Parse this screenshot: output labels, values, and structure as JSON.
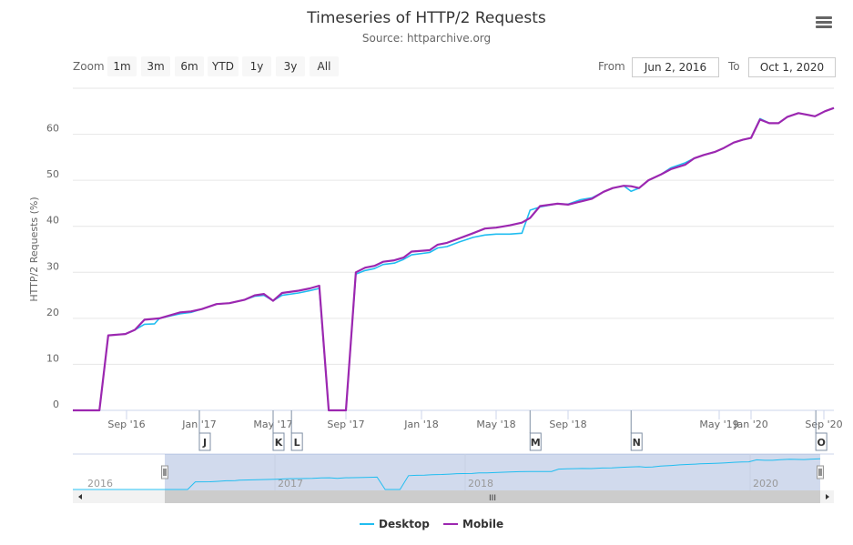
{
  "chart_data": {
    "type": "line",
    "title": "Timeseries of HTTP/2 Requests",
    "subtitle": "Source: httparchive.org",
    "ylabel": "HTTP/2 Requests (%)",
    "xlabel": "",
    "ylim": [
      0,
      70
    ],
    "yticks": [
      0,
      10,
      20,
      30,
      40,
      50,
      60
    ],
    "xticks": [
      {
        "date": "2016-09-01",
        "label": "Sep '16"
      },
      {
        "date": "2017-01-01",
        "label": "Jan '17"
      },
      {
        "date": "2017-05-01",
        "label": "May '17"
      },
      {
        "date": "2017-09-01",
        "label": "Sep '17"
      },
      {
        "date": "2018-01-01",
        "label": "Jan '18"
      },
      {
        "date": "2018-05-01",
        "label": "May '18"
      },
      {
        "date": "2018-09-01",
        "label": "Sep '18"
      },
      {
        "date": "2019-05-01",
        "label": "May '19"
      },
      {
        "date": "2020-01-01",
        "label": "Jan '20"
      },
      {
        "date": "2020-09-01",
        "label": "Sep '20"
      }
    ],
    "grid": true,
    "legend_position": "bottom",
    "series": [
      {
        "name": "Desktop",
        "color": "#20bdf0",
        "points": [
          [
            "2016-06-02",
            0
          ],
          [
            "2016-07-17",
            0
          ],
          [
            "2016-08-01",
            16.3
          ],
          [
            "2016-08-30",
            16.6
          ],
          [
            "2016-09-15",
            17.5
          ],
          [
            "2016-10-01",
            18.7
          ],
          [
            "2016-10-18",
            18.8
          ],
          [
            "2016-10-26",
            20
          ],
          [
            "2016-11-30",
            21
          ],
          [
            "2016-12-18",
            21.3
          ],
          [
            "2017-01-05",
            22
          ],
          [
            "2017-01-29",
            23.1
          ],
          [
            "2017-02-19",
            23.3
          ],
          [
            "2017-03-15",
            24
          ],
          [
            "2017-04-01",
            24.8
          ],
          [
            "2017-04-16",
            25
          ],
          [
            "2017-05-01",
            23.8
          ],
          [
            "2017-05-16",
            25
          ],
          [
            "2017-06-13",
            25.5
          ],
          [
            "2017-07-02",
            26
          ],
          [
            "2017-07-18",
            26.5
          ],
          [
            "2017-08-03",
            0
          ],
          [
            "2017-09-01",
            0
          ],
          [
            "2017-09-17",
            29.6
          ],
          [
            "2017-10-02",
            30.4
          ],
          [
            "2017-10-17",
            30.8
          ],
          [
            "2017-10-31",
            31.7
          ],
          [
            "2017-11-18",
            32
          ],
          [
            "2017-12-03",
            32.8
          ],
          [
            "2017-12-16",
            33.8
          ],
          [
            "2018-01-14",
            34.3
          ],
          [
            "2018-01-27",
            35.3
          ],
          [
            "2018-02-11",
            35.6
          ],
          [
            "2018-03-03",
            36.6
          ],
          [
            "2018-03-25",
            37.6
          ],
          [
            "2018-04-13",
            38.1
          ],
          [
            "2018-05-01",
            38.3
          ],
          [
            "2018-05-24",
            38.3
          ],
          [
            "2018-06-14",
            38.5
          ],
          [
            "2018-06-28",
            43.5
          ],
          [
            "2018-07-15",
            44.2
          ],
          [
            "2018-08-14",
            44.9
          ],
          [
            "2018-09-01",
            44.8
          ],
          [
            "2018-09-22",
            45.8
          ],
          [
            "2018-10-10",
            46.2
          ],
          [
            "2018-10-29",
            47.5
          ],
          [
            "2018-11-13",
            48.3
          ],
          [
            "2018-12-01",
            48.8
          ],
          [
            "2018-12-13",
            47.6
          ],
          [
            "2018-12-26",
            48.3
          ],
          [
            "2019-01-10",
            50
          ],
          [
            "2019-01-30",
            51.3
          ],
          [
            "2019-02-14",
            52.7
          ],
          [
            "2019-03-09",
            53.8
          ],
          [
            "2019-03-23",
            54.8
          ],
          [
            "2019-04-07",
            55.5
          ],
          [
            "2019-04-25",
            56.2
          ],
          [
            "2019-06-05",
            57
          ],
          [
            "2019-08-21",
            58.2
          ],
          [
            "2019-10-30",
            58.8
          ],
          [
            "2020-01-01",
            59.2
          ],
          [
            "2020-01-31",
            63.4
          ],
          [
            "2020-03-02",
            62.4
          ],
          [
            "2020-04-02",
            62.4
          ],
          [
            "2020-05-02",
            63.8
          ],
          [
            "2020-06-08",
            64.6
          ],
          [
            "2020-08-02",
            63.9
          ],
          [
            "2020-09-04",
            65
          ],
          [
            "2020-10-01",
            65.7
          ]
        ]
      },
      {
        "name": "Mobile",
        "color": "#9c27b0",
        "points": [
          [
            "2016-06-02",
            0
          ],
          [
            "2016-07-17",
            0
          ],
          [
            "2016-08-01",
            16.3
          ],
          [
            "2016-08-30",
            16.6
          ],
          [
            "2016-09-15",
            17.5
          ],
          [
            "2016-10-01",
            19.7
          ],
          [
            "2016-10-26",
            20
          ],
          [
            "2016-11-30",
            21.3
          ],
          [
            "2016-12-18",
            21.5
          ],
          [
            "2017-01-05",
            22
          ],
          [
            "2017-01-29",
            23.1
          ],
          [
            "2017-02-19",
            23.3
          ],
          [
            "2017-03-15",
            24
          ],
          [
            "2017-04-01",
            25
          ],
          [
            "2017-04-16",
            25.3
          ],
          [
            "2017-05-01",
            23.8
          ],
          [
            "2017-05-16",
            25.5
          ],
          [
            "2017-06-13",
            26
          ],
          [
            "2017-07-02",
            26.5
          ],
          [
            "2017-07-18",
            27.1
          ],
          [
            "2017-08-03",
            0
          ],
          [
            "2017-09-01",
            0
          ],
          [
            "2017-09-17",
            30
          ],
          [
            "2017-10-02",
            31
          ],
          [
            "2017-10-17",
            31.4
          ],
          [
            "2017-10-31",
            32.3
          ],
          [
            "2017-11-18",
            32.6
          ],
          [
            "2017-12-03",
            33.2
          ],
          [
            "2017-12-16",
            34.5
          ],
          [
            "2018-01-14",
            34.8
          ],
          [
            "2018-01-27",
            36
          ],
          [
            "2018-02-11",
            36.4
          ],
          [
            "2018-03-03",
            37.4
          ],
          [
            "2018-03-25",
            38.5
          ],
          [
            "2018-04-13",
            39.5
          ],
          [
            "2018-05-01",
            39.7
          ],
          [
            "2018-05-24",
            40.2
          ],
          [
            "2018-06-14",
            40.8
          ],
          [
            "2018-06-28",
            41.8
          ],
          [
            "2018-07-15",
            44.4
          ],
          [
            "2018-08-14",
            44.9
          ],
          [
            "2018-09-01",
            44.7
          ],
          [
            "2018-09-22",
            45.4
          ],
          [
            "2018-10-10",
            46
          ],
          [
            "2018-10-29",
            47.5
          ],
          [
            "2018-11-13",
            48.3
          ],
          [
            "2018-12-01",
            48.8
          ],
          [
            "2018-12-13",
            48.7
          ],
          [
            "2018-12-26",
            48.3
          ],
          [
            "2019-01-10",
            50
          ],
          [
            "2019-01-30",
            51.3
          ],
          [
            "2019-02-14",
            52.4
          ],
          [
            "2019-03-09",
            53.4
          ],
          [
            "2019-03-23",
            54.8
          ],
          [
            "2019-04-07",
            55.5
          ],
          [
            "2019-04-25",
            56.2
          ],
          [
            "2019-06-05",
            57
          ],
          [
            "2019-08-21",
            58.2
          ],
          [
            "2019-10-30",
            58.8
          ],
          [
            "2020-01-01",
            59.2
          ],
          [
            "2020-01-31",
            63.2
          ],
          [
            "2020-03-02",
            62.4
          ],
          [
            "2020-04-02",
            62.4
          ],
          [
            "2020-05-02",
            63.8
          ],
          [
            "2020-06-08",
            64.6
          ],
          [
            "2020-08-02",
            63.9
          ],
          [
            "2020-09-04",
            65
          ],
          [
            "2020-10-01",
            65.7
          ]
        ]
      }
    ],
    "flags": [
      {
        "label": "J",
        "date": "2017-01-01"
      },
      {
        "label": "K",
        "date": "2017-05-01"
      },
      {
        "label": "L",
        "date": "2017-06-01"
      },
      {
        "label": "M",
        "date": "2018-06-28"
      },
      {
        "label": "N",
        "date": "2018-12-13"
      },
      {
        "label": "O",
        "date": "2020-08-05"
      }
    ],
    "navigator": {
      "year_labels": [
        "2016",
        "2017",
        "2018",
        "2020"
      ],
      "selected_range": [
        "2016-06-02",
        "2020-10-01"
      ]
    }
  },
  "range_selector": {
    "zoom_label": "Zoom",
    "buttons": [
      "1m",
      "3m",
      "6m",
      "YTD",
      "1y",
      "3y",
      "All"
    ],
    "from_label": "From",
    "from_value": "Jun 2, 2016",
    "to_label": "To",
    "to_value": "Oct 1, 2020"
  },
  "menu_icon": "hamburger-menu-icon"
}
